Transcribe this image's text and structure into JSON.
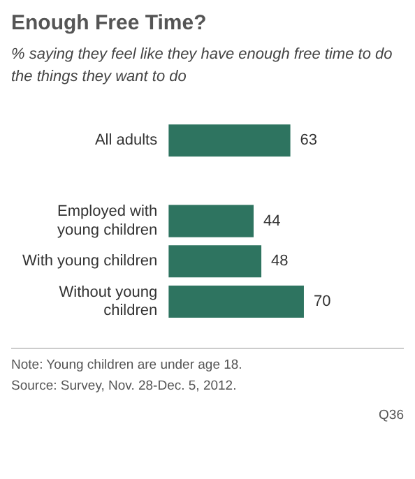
{
  "chart_data": {
    "type": "bar",
    "orientation": "horizontal",
    "title": "Enough Free Time?",
    "subtitle": "% saying they feel like they have enough free time to do the things they want to do",
    "categories": [
      "All adults",
      null,
      "Employed with young children",
      "With young children",
      "Without young children"
    ],
    "values": [
      63,
      null,
      44,
      48,
      70
    ],
    "color": "#2e7460",
    "data_labels": true,
    "annotations": [
      "Note: Young children are under age 18.",
      "Source: Survey, Nov. 28-Dec. 5, 2012.",
      "Q36"
    ]
  }
}
